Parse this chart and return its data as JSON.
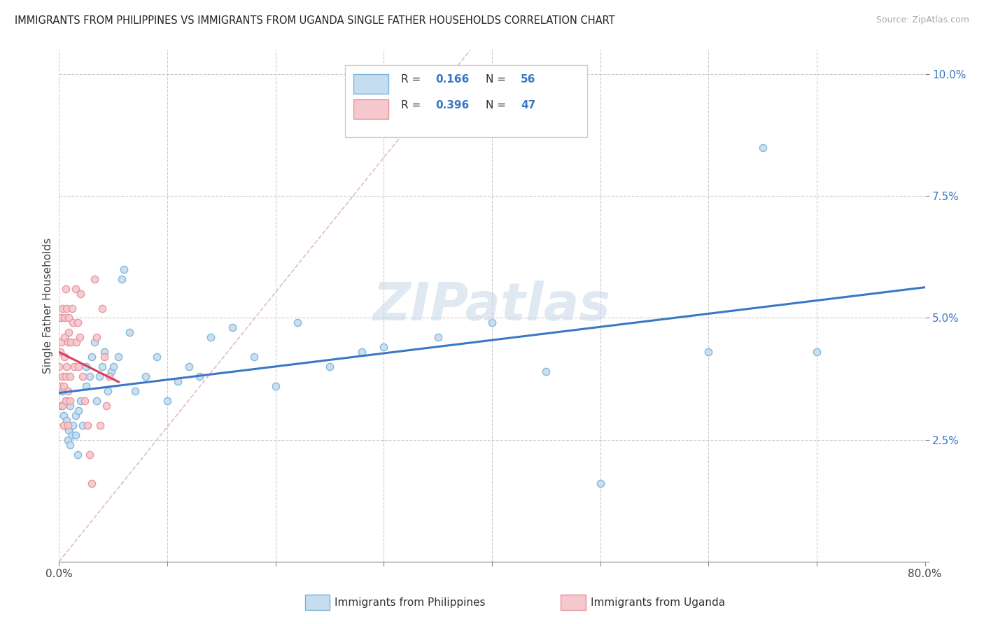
{
  "title": "IMMIGRANTS FROM PHILIPPINES VS IMMIGRANTS FROM UGANDA SINGLE FATHER HOUSEHOLDS CORRELATION CHART",
  "source": "Source: ZipAtlas.com",
  "ylabel_label": "Single Father Households",
  "r_philippines": 0.166,
  "n_philippines": 56,
  "r_uganda": 0.396,
  "n_uganda": 47,
  "watermark": "ZIPatlas",
  "color_philippines": "#7ab3d8",
  "color_philippines_fill": "#c6dcef",
  "color_uganda": "#e8909a",
  "color_uganda_fill": "#f5c8ce",
  "color_blue_line": "#3a78c3",
  "color_pink_line": "#d44060",
  "color_diag_line": "#e0a0a8",
  "philippines_x": [
    0.002,
    0.003,
    0.004,
    0.005,
    0.006,
    0.007,
    0.008,
    0.009,
    0.01,
    0.01,
    0.012,
    0.013,
    0.015,
    0.015,
    0.017,
    0.018,
    0.02,
    0.022,
    0.025,
    0.025,
    0.028,
    0.03,
    0.033,
    0.035,
    0.037,
    0.04,
    0.042,
    0.045,
    0.048,
    0.05,
    0.055,
    0.058,
    0.06,
    0.065,
    0.07,
    0.08,
    0.09,
    0.1,
    0.11,
    0.12,
    0.13,
    0.14,
    0.16,
    0.18,
    0.2,
    0.22,
    0.25,
    0.28,
    0.3,
    0.35,
    0.4,
    0.45,
    0.5,
    0.6,
    0.65,
    0.7
  ],
  "philippines_y": [
    0.032,
    0.035,
    0.03,
    0.028,
    0.033,
    0.029,
    0.025,
    0.027,
    0.032,
    0.024,
    0.026,
    0.028,
    0.03,
    0.026,
    0.022,
    0.031,
    0.033,
    0.028,
    0.036,
    0.04,
    0.038,
    0.042,
    0.045,
    0.033,
    0.038,
    0.04,
    0.043,
    0.035,
    0.039,
    0.04,
    0.042,
    0.058,
    0.06,
    0.047,
    0.035,
    0.038,
    0.042,
    0.033,
    0.037,
    0.04,
    0.038,
    0.046,
    0.048,
    0.042,
    0.036,
    0.049,
    0.04,
    0.043,
    0.044,
    0.046,
    0.049,
    0.039,
    0.016,
    0.043,
    0.085,
    0.043
  ],
  "uganda_x": [
    0.0,
    0.001,
    0.001,
    0.002,
    0.002,
    0.003,
    0.003,
    0.003,
    0.004,
    0.004,
    0.005,
    0.005,
    0.005,
    0.006,
    0.006,
    0.006,
    0.007,
    0.007,
    0.008,
    0.008,
    0.008,
    0.009,
    0.009,
    0.01,
    0.01,
    0.011,
    0.012,
    0.013,
    0.014,
    0.015,
    0.016,
    0.017,
    0.018,
    0.019,
    0.02,
    0.022,
    0.024,
    0.026,
    0.028,
    0.03,
    0.033,
    0.035,
    0.038,
    0.04,
    0.042,
    0.044,
    0.046
  ],
  "uganda_y": [
    0.04,
    0.036,
    0.043,
    0.045,
    0.05,
    0.038,
    0.032,
    0.052,
    0.036,
    0.028,
    0.046,
    0.05,
    0.042,
    0.038,
    0.056,
    0.033,
    0.04,
    0.052,
    0.035,
    0.028,
    0.045,
    0.047,
    0.05,
    0.038,
    0.033,
    0.045,
    0.052,
    0.049,
    0.04,
    0.056,
    0.045,
    0.049,
    0.04,
    0.046,
    0.055,
    0.038,
    0.033,
    0.028,
    0.022,
    0.016,
    0.058,
    0.046,
    0.028,
    0.052,
    0.042,
    0.032,
    0.038
  ],
  "xlim": [
    0.0,
    0.8
  ],
  "ylim": [
    0.0,
    0.105
  ],
  "yticks": [
    0.0,
    0.025,
    0.05,
    0.075,
    0.1
  ],
  "ytick_labels": [
    "",
    "2.5%",
    "5.0%",
    "7.5%",
    "10.0%"
  ],
  "xticks": [
    0.0,
    0.1,
    0.2,
    0.3,
    0.4,
    0.5,
    0.6,
    0.7,
    0.8
  ],
  "xtick_labels": [
    "0.0%",
    "",
    "",
    "",
    "",
    "",
    "",
    "",
    "80.0%"
  ]
}
